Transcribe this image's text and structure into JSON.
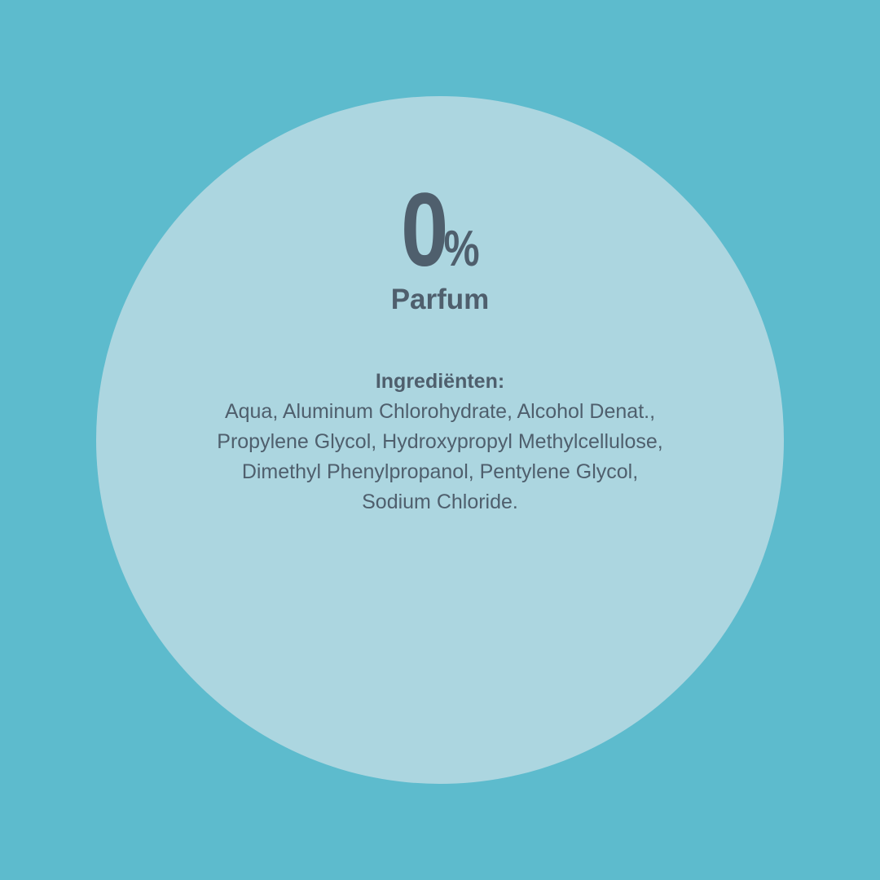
{
  "colors": {
    "background": "#5dbbcd",
    "circle": "#acd6e0",
    "text": "#4f5f6d"
  },
  "stat": {
    "value": "0",
    "unit": "%",
    "label": "Parfum"
  },
  "ingredients": {
    "title": "Ingrediënten:",
    "lines": [
      "Aqua, Aluminum Chlorohydrate, Alcohol Denat.,",
      "Propylene Glycol, Hydroxypropyl Methylcellulose,",
      "Dimethyl Phenylpropanol, Pentylene Glycol,",
      "Sodium Chloride."
    ]
  }
}
